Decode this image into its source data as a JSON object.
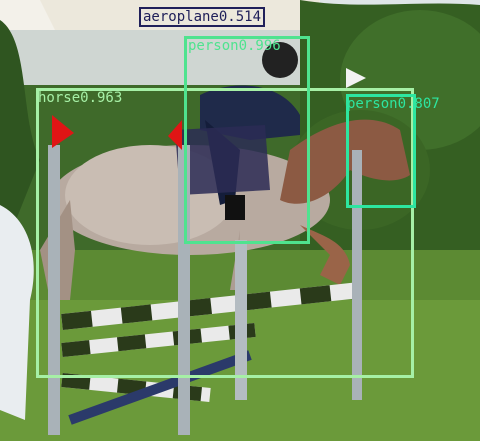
{
  "detections": [
    {
      "id": "horse",
      "label": "horse0.963",
      "color": "#a6f0a6"
    },
    {
      "id": "rider",
      "label": "person0.996",
      "color": "#4fe38f"
    },
    {
      "id": "bystander",
      "label": "person0.807",
      "color": "#2de6a0"
    },
    {
      "id": "aeroplane",
      "label": "aeroplane0.514",
      "color": "#20205a"
    }
  ]
}
